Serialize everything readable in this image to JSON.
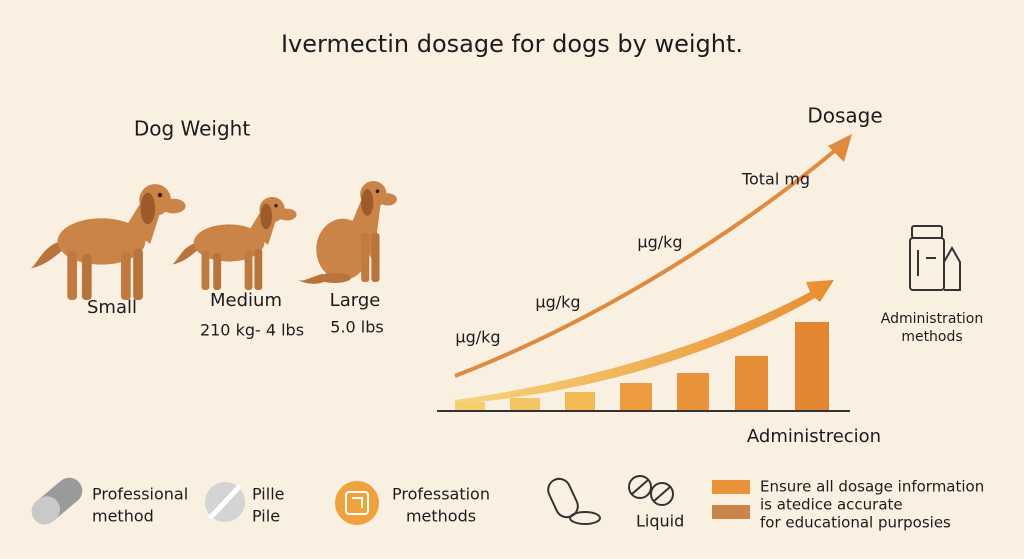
{
  "title": "Ivermectin dosage for dogs by weight.",
  "weights": {
    "heading": "Dog Weight",
    "dogs": [
      {
        "label": "Small"
      },
      {
        "label": "Medium",
        "range": "210 kg- 4 lbs"
      },
      {
        "label": "Large",
        "range": "5.0 lbs"
      }
    ]
  },
  "dosage": {
    "heading": "Dosage",
    "labels": [
      "μg/kg",
      "μg/kg",
      "μg/kg",
      "Total mg"
    ],
    "axis_label": "Administrecion"
  },
  "side": {
    "lines": [
      "Administration",
      "methods"
    ]
  },
  "footer": {
    "items": [
      {
        "lines": [
          "Professional",
          "method"
        ]
      },
      {
        "lines": [
          "Pille",
          "Pile"
        ]
      },
      {
        "lines": [
          "Professation",
          "methods"
        ]
      },
      {
        "lines": [
          "Liquid"
        ]
      }
    ],
    "note": [
      "Ensure all dosage information",
      "is atedice accurate",
      "for educational purposies"
    ]
  }
}
